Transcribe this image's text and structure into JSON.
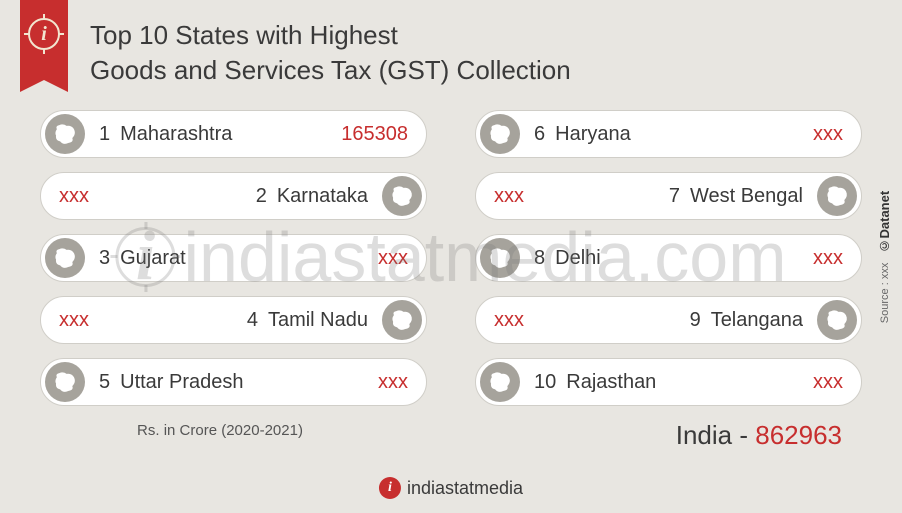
{
  "title_line1": "Top 10 States with Highest",
  "title_line2": "Goods and Services Tax (GST) Collection",
  "unit_note": "Rs. in Crore (2020-2021)",
  "total_label": "India",
  "total_sep": " - ",
  "total_value": "862963",
  "footer_brand": "indiastatmedia",
  "watermark_text": "indiastatmedia.com",
  "side_brand": "Datanet",
  "side_source": "Source : xxx",
  "col1": [
    {
      "rank": "1",
      "state": "Maharashtra",
      "value": "165308",
      "align": "left"
    },
    {
      "rank": "2",
      "state": "Karnataka",
      "value": "xxx",
      "align": "right"
    },
    {
      "rank": "3",
      "state": "Gujarat",
      "value": "xxx",
      "align": "left"
    },
    {
      "rank": "4",
      "state": "Tamil Nadu",
      "value": "xxx",
      "align": "right"
    },
    {
      "rank": "5",
      "state": "Uttar Pradesh",
      "value": "xxx",
      "align": "left"
    }
  ],
  "col2": [
    {
      "rank": "6",
      "state": "Haryana",
      "value": "xxx",
      "align": "left"
    },
    {
      "rank": "7",
      "state": "West Bengal",
      "value": "xxx",
      "align": "right"
    },
    {
      "rank": "8",
      "state": "Delhi",
      "value": "xxx",
      "align": "left"
    },
    {
      "rank": "9",
      "state": "Telangana",
      "value": "xxx",
      "align": "right"
    },
    {
      "rank": "10",
      "state": "Rajasthan",
      "value": "xxx",
      "align": "left"
    }
  ],
  "colors": {
    "accent": "#c72e2e",
    "background": "#e8e6e1",
    "pill_bg": "#ffffff",
    "text": "#3a3a3a",
    "badge": "#a6a39c"
  }
}
